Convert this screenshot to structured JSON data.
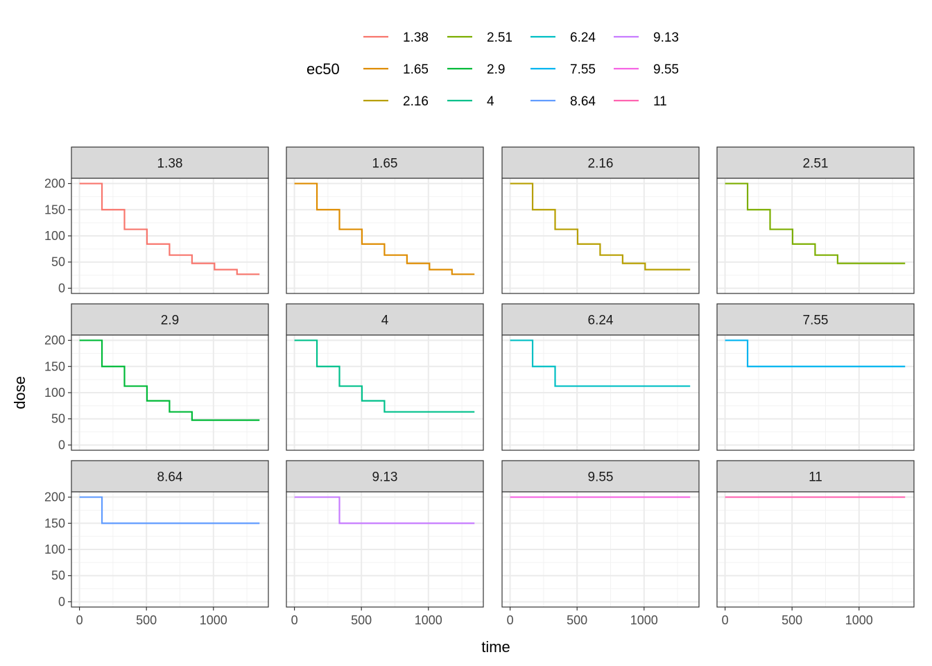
{
  "chart_data": {
    "type": "line",
    "step": true,
    "facet_by": "ec50",
    "xlabel": "time",
    "ylabel": "dose",
    "xlim": [
      -60,
      1410
    ],
    "ylim": [
      -10,
      210
    ],
    "x_ticks": [
      0,
      500,
      1000
    ],
    "x_tick_labels": [
      "0",
      "500",
      "1000"
    ],
    "y_ticks": [
      0,
      50,
      100,
      150,
      200
    ],
    "y_tick_labels": [
      "0",
      "50",
      "100",
      "150",
      "200"
    ],
    "grid": true,
    "legend": {
      "title": "ec50",
      "position": "top",
      "entries": [
        "1.38",
        "1.65",
        "2.16",
        "2.51",
        "2.9",
        "4",
        "6.24",
        "7.55",
        "8.64",
        "9.13",
        "9.55",
        "11"
      ]
    },
    "series": [
      {
        "name": "1.38",
        "color": "#F8766D",
        "x": [
          0,
          168,
          336,
          504,
          672,
          840,
          1008,
          1176,
          1344
        ],
        "y": [
          200,
          150,
          112.5,
          84.4,
          63.3,
          47.5,
          35.6,
          26.7,
          26.7
        ]
      },
      {
        "name": "1.65",
        "color": "#DE8C00",
        "x": [
          0,
          168,
          336,
          504,
          672,
          840,
          1008,
          1176,
          1344
        ],
        "y": [
          200,
          150,
          112.5,
          84.4,
          63.3,
          47.5,
          35.6,
          26.7,
          26.7
        ]
      },
      {
        "name": "2.16",
        "color": "#B79F00",
        "x": [
          0,
          168,
          336,
          504,
          672,
          840,
          1008,
          1344
        ],
        "y": [
          200,
          150,
          112.5,
          84.4,
          63.3,
          47.5,
          35.6,
          35.6
        ]
      },
      {
        "name": "2.51",
        "color": "#7CAE00",
        "x": [
          0,
          168,
          336,
          504,
          672,
          840,
          1344
        ],
        "y": [
          200,
          150,
          112.5,
          84.4,
          63.3,
          47.5,
          47.5
        ]
      },
      {
        "name": "2.9",
        "color": "#00BA38",
        "x": [
          0,
          168,
          336,
          504,
          672,
          840,
          1344
        ],
        "y": [
          200,
          150,
          112.5,
          84.4,
          63.3,
          47.5,
          47.5
        ]
      },
      {
        "name": "4",
        "color": "#00C08B",
        "x": [
          0,
          168,
          336,
          504,
          672,
          1344
        ],
        "y": [
          200,
          150,
          112.5,
          84.4,
          63.3,
          63.3
        ]
      },
      {
        "name": "6.24",
        "color": "#00BFC4",
        "x": [
          0,
          168,
          336,
          1344
        ],
        "y": [
          200,
          150,
          112.5,
          112.5
        ]
      },
      {
        "name": "7.55",
        "color": "#00B4F0",
        "x": [
          0,
          168,
          1344
        ],
        "y": [
          200,
          150,
          150
        ]
      },
      {
        "name": "8.64",
        "color": "#619CFF",
        "x": [
          0,
          168,
          1344
        ],
        "y": [
          200,
          150,
          150
        ]
      },
      {
        "name": "9.13",
        "color": "#C77CFF",
        "x": [
          0,
          336,
          1344
        ],
        "y": [
          200,
          150,
          150
        ]
      },
      {
        "name": "9.55",
        "color": "#F564E3",
        "x": [
          0,
          1344
        ],
        "y": [
          200,
          200
        ]
      },
      {
        "name": "11",
        "color": "#FF64B0",
        "x": [
          0,
          1344
        ],
        "y": [
          200,
          200
        ]
      }
    ]
  }
}
